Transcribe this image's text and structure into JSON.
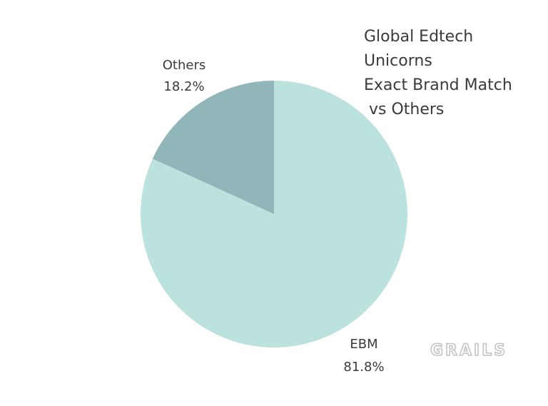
{
  "chart_data": {
    "type": "pie",
    "title_lines": [
      "Global Edtech",
      "Unicorns",
      "Exact Brand Match",
      " vs Others"
    ],
    "slices": [
      {
        "label": "Others",
        "value": 18.2,
        "value_text": "18.2%",
        "color": "#91b6b9"
      },
      {
        "label": "EBM",
        "value": 81.8,
        "value_text": "81.8%",
        "color": "#bce2de"
      }
    ],
    "start": "12 o'clock",
    "direction": "counterclockwise (Others first)"
  },
  "watermark": {
    "text": "GRAILS",
    "color": "#c4c4c4"
  }
}
